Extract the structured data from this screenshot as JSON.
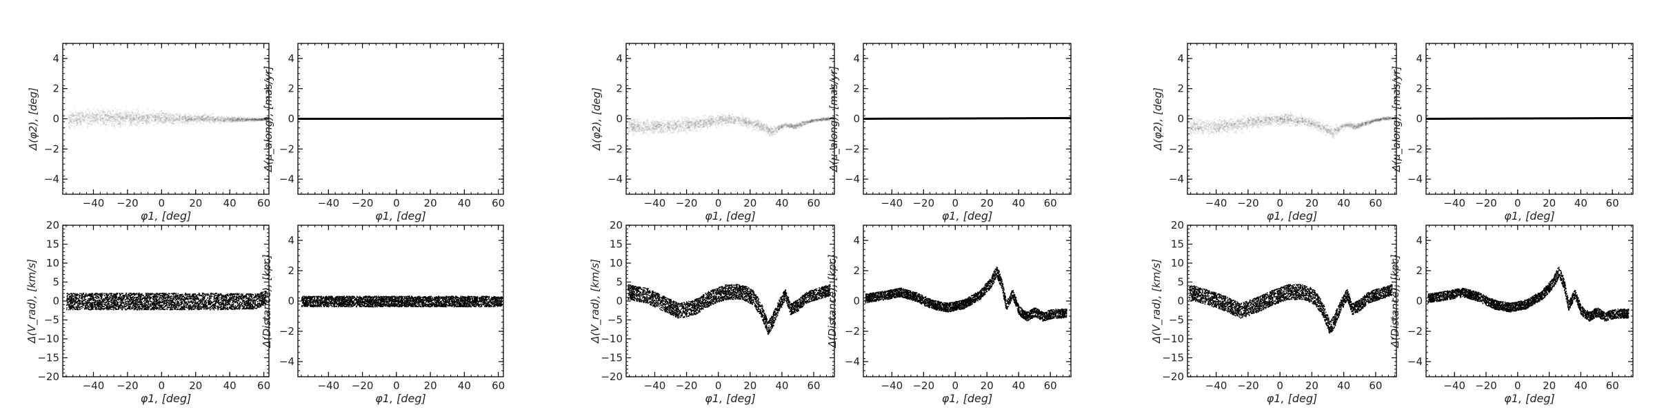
{
  "chart_data": [
    {
      "type": "scatter",
      "panel": "A-phi2",
      "kind": "density",
      "xlabel": "φ1, [deg]",
      "ylabel": "Δ(φ2), [deg]",
      "xlim": [
        -58,
        63
      ],
      "ylim": [
        -5,
        5
      ],
      "xticks": [
        "−40",
        "−20",
        "0",
        "20",
        "40",
        "60"
      ],
      "yticks": [
        "−4",
        "−2",
        "0",
        "2",
        "4"
      ],
      "x": [
        -55,
        -45,
        -35,
        -25,
        -15,
        -5,
        5,
        15,
        25,
        35,
        45,
        55,
        62
      ],
      "y": [
        0.0,
        0.1,
        0.1,
        0.1,
        0.1,
        0.1,
        0.05,
        0.05,
        0.05,
        0.0,
        0.0,
        0.0,
        0.0
      ],
      "spread": [
        0.5,
        0.5,
        0.5,
        0.45,
        0.45,
        0.4,
        0.35,
        0.3,
        0.25,
        0.2,
        0.15,
        0.1,
        0.05
      ]
    },
    {
      "type": "scatter",
      "panel": "A-pm",
      "kind": "line",
      "xlabel": "φ1, [deg]",
      "ylabel": "Δ(μ_along), [mas/yr]",
      "xlim": [
        -58,
        63
      ],
      "ylim": [
        -5,
        5
      ],
      "xticks": [
        "−40",
        "−20",
        "0",
        "20",
        "40",
        "60"
      ],
      "yticks": [
        "−4",
        "−2",
        "0",
        "2",
        "4"
      ],
      "x": [
        -58,
        63
      ],
      "y": [
        0.0,
        0.0
      ],
      "spread": [
        0.05,
        0.05
      ]
    },
    {
      "type": "scatter",
      "panel": "A-vrad",
      "kind": "band",
      "xlabel": "φ1, [deg]",
      "ylabel": "Δ(V_rad), [km/s]",
      "xlim": [
        -58,
        63
      ],
      "ylim": [
        -20,
        20
      ],
      "xticks": [
        "−40",
        "−20",
        "0",
        "20",
        "40",
        "60"
      ],
      "yticks": [
        "−20",
        "−15",
        "−10",
        "−5",
        "0",
        "5",
        "10",
        "15",
        "20"
      ],
      "x": [
        -56,
        -30,
        0,
        30,
        55,
        61
      ],
      "y": [
        0,
        0,
        0,
        0,
        0,
        1
      ],
      "spread": [
        2.2,
        2.2,
        2.2,
        2.2,
        2.0,
        1.8
      ]
    },
    {
      "type": "scatter",
      "panel": "A-dist",
      "kind": "band",
      "xlabel": "φ1, [deg]",
      "ylabel": "Δ(Distance), [kpc]",
      "xlim": [
        -58,
        63
      ],
      "ylim": [
        -5,
        5
      ],
      "xticks": [
        "−40",
        "−20",
        "0",
        "20",
        "40",
        "60"
      ],
      "yticks": [
        "−4",
        "−2",
        "0",
        "2",
        "4"
      ],
      "x": [
        -56,
        -30,
        0,
        30,
        55,
        62
      ],
      "y": [
        0,
        0,
        0,
        0,
        0,
        0
      ],
      "spread": [
        0.35,
        0.35,
        0.35,
        0.35,
        0.35,
        0.3
      ]
    },
    {
      "type": "scatter",
      "panel": "B-phi2",
      "kind": "density",
      "xlabel": "φ1, [deg]",
      "ylabel": "Δ(φ2), [deg]",
      "xlim": [
        -58,
        73
      ],
      "ylim": [
        -5,
        5
      ],
      "xticks": [
        "−40",
        "−20",
        "0",
        "20",
        "40",
        "60"
      ],
      "yticks": [
        "−4",
        "−2",
        "0",
        "2",
        "4"
      ],
      "x": [
        -57,
        -45,
        -35,
        -25,
        -15,
        -5,
        5,
        15,
        22,
        28,
        33,
        38,
        42,
        47,
        52,
        58,
        64,
        70
      ],
      "y": [
        -0.5,
        -0.5,
        -0.45,
        -0.4,
        -0.3,
        -0.1,
        0.0,
        -0.1,
        -0.3,
        -0.5,
        -0.85,
        -0.55,
        -0.35,
        -0.5,
        -0.3,
        -0.1,
        0.0,
        0.05
      ],
      "spread": [
        0.45,
        0.45,
        0.45,
        0.45,
        0.4,
        0.35,
        0.35,
        0.3,
        0.3,
        0.3,
        0.3,
        0.2,
        0.15,
        0.15,
        0.15,
        0.1,
        0.1,
        0.1
      ]
    },
    {
      "type": "scatter",
      "panel": "B-pm",
      "kind": "line",
      "xlabel": "φ1, [deg]",
      "ylabel": "Δ(μ_along), [mas/yr]",
      "xlim": [
        -58,
        73
      ],
      "ylim": [
        -5,
        5
      ],
      "xticks": [
        "−40",
        "−20",
        "0",
        "20",
        "40",
        "60"
      ],
      "yticks": [
        "−4",
        "−2",
        "0",
        "2",
        "4"
      ],
      "x": [
        -58,
        -20,
        0,
        20,
        40,
        60,
        73
      ],
      "y": [
        0.0,
        0.0,
        0.05,
        0.05,
        0.05,
        0.05,
        0.05
      ],
      "spread": [
        0.05,
        0.05,
        0.05,
        0.05,
        0.05,
        0.05,
        0.05
      ]
    },
    {
      "type": "scatter",
      "panel": "B-vrad",
      "kind": "band",
      "xlabel": "φ1, [deg]",
      "ylabel": "Δ(V_rad), [km/s]",
      "xlim": [
        -58,
        73
      ],
      "ylim": [
        -20,
        20
      ],
      "xticks": [
        "−40",
        "−20",
        "0",
        "20",
        "40",
        "60"
      ],
      "yticks": [
        "−20",
        "−15",
        "−10",
        "−5",
        "0",
        "5",
        "10",
        "15",
        "20"
      ],
      "x": [
        -57,
        -45,
        -35,
        -25,
        -15,
        -5,
        5,
        15,
        22,
        27,
        31,
        34,
        38,
        42,
        45,
        50,
        55,
        62,
        70
      ],
      "y": [
        2.5,
        1.5,
        -0.5,
        -2.5,
        -1.5,
        1.0,
        2.5,
        2.5,
        1.0,
        -2.5,
        -7.0,
        -5.0,
        -1.0,
        2.0,
        -2.0,
        -1.0,
        1.0,
        2.0,
        3.0
      ],
      "spread": [
        2.0,
        2.0,
        2.0,
        2.0,
        2.0,
        2.0,
        2.0,
        2.0,
        2.0,
        1.8,
        1.8,
        1.8,
        1.5,
        1.5,
        1.5,
        1.5,
        1.5,
        1.5,
        1.5
      ]
    },
    {
      "type": "scatter",
      "panel": "B-dist",
      "kind": "band",
      "xlabel": "φ1, [deg]",
      "ylabel": "Δ(Distance), [kpc]",
      "xlim": [
        -58,
        73
      ],
      "ylim": [
        -5,
        5
      ],
      "xticks": [
        "−40",
        "−20",
        "0",
        "20",
        "40",
        "60"
      ],
      "yticks": [
        "−4",
        "−2",
        "0",
        "2",
        "4"
      ],
      "x": [
        -57,
        -45,
        -35,
        -25,
        -15,
        -5,
        5,
        15,
        22,
        26,
        29,
        32,
        36,
        40,
        45,
        50,
        55,
        62,
        70
      ],
      "y": [
        0.2,
        0.4,
        0.6,
        0.3,
        -0.2,
        -0.4,
        -0.2,
        0.4,
        1.2,
        2.0,
        1.2,
        -0.3,
        0.5,
        -0.6,
        -1.0,
        -0.7,
        -1.0,
        -0.8,
        -0.8
      ],
      "spread": [
        0.3,
        0.3,
        0.3,
        0.3,
        0.3,
        0.3,
        0.3,
        0.3,
        0.35,
        0.4,
        0.35,
        0.3,
        0.3,
        0.3,
        0.3,
        0.3,
        0.3,
        0.3,
        0.3
      ]
    },
    {
      "type": "scatter",
      "panel": "C-phi2",
      "kind": "density",
      "xlabel": "φ1, [deg]",
      "ylabel": "Δ(φ2), [deg]",
      "xlim": [
        -58,
        73
      ],
      "ylim": [
        -5,
        5
      ],
      "xticks": [
        "−40",
        "−20",
        "0",
        "20",
        "40",
        "60"
      ],
      "yticks": [
        "−4",
        "−2",
        "0",
        "2",
        "4"
      ],
      "x": [
        -57,
        -45,
        -35,
        -25,
        -15,
        -5,
        5,
        15,
        22,
        28,
        33,
        38,
        42,
        47,
        52,
        58,
        64,
        70
      ],
      "y": [
        -0.5,
        -0.5,
        -0.45,
        -0.3,
        -0.1,
        0.0,
        0.0,
        -0.1,
        -0.3,
        -0.6,
        -0.9,
        -0.5,
        -0.35,
        -0.5,
        -0.3,
        -0.1,
        0.05,
        0.1
      ],
      "spread": [
        0.45,
        0.45,
        0.45,
        0.45,
        0.4,
        0.35,
        0.35,
        0.3,
        0.3,
        0.3,
        0.3,
        0.2,
        0.15,
        0.15,
        0.15,
        0.1,
        0.1,
        0.1
      ]
    },
    {
      "type": "scatter",
      "panel": "C-pm",
      "kind": "line",
      "xlabel": "φ1, [deg]",
      "ylabel": "Δ(μ_along), [mas/yr]",
      "xlim": [
        -58,
        73
      ],
      "ylim": [
        -5,
        5
      ],
      "xticks": [
        "−40",
        "−20",
        "0",
        "20",
        "40",
        "60"
      ],
      "yticks": [
        "−4",
        "−2",
        "0",
        "2",
        "4"
      ],
      "x": [
        -58,
        -20,
        0,
        20,
        40,
        60,
        73
      ],
      "y": [
        0.0,
        0.0,
        0.05,
        0.05,
        0.05,
        0.05,
        0.05
      ],
      "spread": [
        0.05,
        0.05,
        0.05,
        0.05,
        0.05,
        0.05,
        0.05
      ]
    },
    {
      "type": "scatter",
      "panel": "C-vrad",
      "kind": "band",
      "xlabel": "φ1, [deg]",
      "ylabel": "Δ(V_rad), [km/s]",
      "xlim": [
        -58,
        73
      ],
      "ylim": [
        -20,
        20
      ],
      "xticks": [
        "−40",
        "−20",
        "0",
        "20",
        "40",
        "60"
      ],
      "yticks": [
        "−20",
        "−15",
        "−10",
        "−5",
        "0",
        "5",
        "10",
        "15",
        "20"
      ],
      "x": [
        -57,
        -45,
        -35,
        -25,
        -15,
        -5,
        5,
        15,
        22,
        27,
        31,
        34,
        38,
        42,
        45,
        50,
        55,
        62,
        70
      ],
      "y": [
        2.5,
        1.0,
        -0.5,
        -2.5,
        -1.0,
        1.0,
        2.5,
        2.5,
        1.0,
        -2.5,
        -7.0,
        -5.0,
        -1.0,
        2.0,
        -2.0,
        -1.0,
        1.0,
        2.0,
        3.0
      ],
      "spread": [
        2.0,
        2.0,
        2.0,
        2.0,
        2.0,
        2.0,
        2.0,
        2.0,
        2.0,
        1.8,
        1.8,
        1.8,
        1.5,
        1.5,
        1.5,
        1.5,
        1.5,
        1.5,
        1.5
      ]
    },
    {
      "type": "scatter",
      "panel": "C-dist",
      "kind": "band",
      "xlabel": "φ1, [deg]",
      "ylabel": "Δ(Distance), [kpc]",
      "xlim": [
        -58,
        73
      ],
      "ylim": [
        -5,
        5
      ],
      "xticks": [
        "−40",
        "−20",
        "0",
        "20",
        "40",
        "60"
      ],
      "yticks": [
        "−4",
        "−2",
        "0",
        "2",
        "4"
      ],
      "x": [
        -57,
        -45,
        -35,
        -25,
        -15,
        -5,
        5,
        15,
        22,
        26,
        29,
        32,
        36,
        40,
        45,
        50,
        55,
        62,
        70
      ],
      "y": [
        0.2,
        0.4,
        0.6,
        0.3,
        -0.2,
        -0.4,
        -0.2,
        0.4,
        1.2,
        2.0,
        1.2,
        -0.3,
        0.5,
        -0.6,
        -1.0,
        -0.7,
        -1.0,
        -0.8,
        -0.8
      ],
      "spread": [
        0.3,
        0.3,
        0.3,
        0.3,
        0.3,
        0.3,
        0.3,
        0.3,
        0.35,
        0.4,
        0.35,
        0.3,
        0.3,
        0.3,
        0.3,
        0.3,
        0.3,
        0.3,
        0.3
      ]
    }
  ]
}
